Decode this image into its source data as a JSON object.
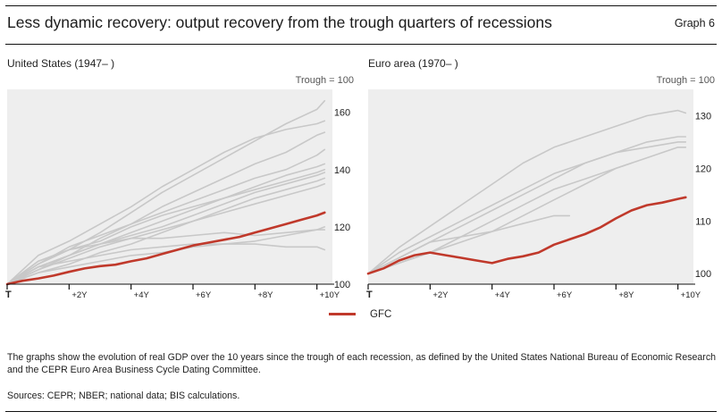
{
  "header": {
    "title": "Less dynamic recovery: output recovery from the trough quarters of recessions",
    "graph_number": "Graph 6"
  },
  "panels": [
    {
      "title": "United States (1947– )",
      "unit": "Trough = 100"
    },
    {
      "title": "Euro area (1970– )",
      "unit": "Trough = 100"
    }
  ],
  "legend": {
    "label": "GFC",
    "color": "#c0392b"
  },
  "colors": {
    "gfc": "#c0392b",
    "other_recessions": "#c8c8c8",
    "plot_background": "#eeeeee"
  },
  "footer": {
    "note": "The graphs show the evolution of real GDP over the 10 years since the trough of each recession, as defined by the United States National Bureau of Economic Research and the CEPR Euro Area Business Cycle Dating Committee.",
    "sources": "Sources: CEPR; NBER; national data; BIS calculations."
  },
  "chart_data": [
    {
      "type": "line",
      "title": "United States (1947– )",
      "subtitle": "Trough = 100",
      "x_unit": "quarters after trough",
      "x_ticks": [
        {
          "x": 0,
          "label": "T"
        },
        {
          "x": 8,
          "label": "+2Y"
        },
        {
          "x": 16,
          "label": "+4Y"
        },
        {
          "x": 24,
          "label": "+6Y"
        },
        {
          "x": 32,
          "label": "+8Y"
        },
        {
          "x": 40,
          "label": "+10Y"
        }
      ],
      "xlim": [
        0,
        42
      ],
      "ylim": [
        100,
        168
      ],
      "y_ticks": [
        100,
        120,
        140,
        160
      ],
      "y_axis_side": "right",
      "grid": false,
      "series": [
        {
          "name": "GFC",
          "highlight": true,
          "x": [
            0,
            2,
            4,
            6,
            8,
            10,
            12,
            14,
            16,
            18,
            20,
            22,
            24,
            26,
            28,
            30,
            32,
            34,
            36,
            38,
            40,
            41
          ],
          "values": [
            100,
            101.2,
            102,
            103,
            104.3,
            105.5,
            106.3,
            106.8,
            108,
            109,
            110.5,
            112,
            113.5,
            114.5,
            115.5,
            116.5,
            118,
            119.5,
            121,
            122.5,
            124,
            125
          ]
        },
        {
          "x": [
            0,
            4,
            8,
            12,
            16,
            20,
            24,
            28,
            32,
            36,
            40,
            41
          ],
          "values": [
            100,
            107,
            112,
            118,
            125,
            132,
            138,
            144,
            150,
            156,
            161,
            164
          ]
        },
        {
          "x": [
            0,
            4,
            8,
            12,
            16,
            20,
            24,
            28,
            32,
            36,
            40,
            41
          ],
          "values": [
            100,
            110,
            115,
            121,
            127,
            134,
            140,
            146,
            151,
            154,
            156,
            157
          ]
        },
        {
          "x": [
            0,
            4,
            8,
            12,
            16,
            20,
            24,
            28,
            32,
            36,
            40,
            41
          ],
          "values": [
            100,
            106,
            110,
            116,
            121,
            127,
            132,
            137,
            142,
            146,
            152,
            153
          ]
        },
        {
          "x": [
            0,
            4,
            8,
            12,
            16,
            20,
            24,
            28,
            32,
            36,
            40,
            41
          ],
          "values": [
            100,
            107,
            113,
            117,
            121,
            125,
            129,
            133,
            137,
            140,
            145,
            147
          ]
        },
        {
          "x": [
            0,
            4,
            8,
            12,
            16,
            20,
            24,
            28,
            32,
            36,
            40,
            41
          ],
          "values": [
            100,
            105,
            110,
            114,
            118,
            122,
            126,
            130,
            134,
            138,
            141,
            142
          ]
        },
        {
          "x": [
            0,
            4,
            8,
            12,
            16,
            20,
            24,
            28,
            32,
            36,
            40,
            41
          ],
          "values": [
            100,
            108,
            112,
            115,
            120,
            124,
            127,
            130,
            133,
            136,
            139,
            140
          ]
        },
        {
          "x": [
            0,
            4,
            8,
            12,
            16,
            20,
            24,
            28,
            32,
            36,
            40,
            41
          ],
          "values": [
            100,
            106,
            110,
            114,
            117,
            120,
            124,
            128,
            132,
            135,
            138,
            139
          ]
        },
        {
          "x": [
            0,
            4,
            8,
            12,
            16,
            20,
            24,
            28,
            32,
            36,
            40,
            41
          ],
          "values": [
            100,
            104,
            107,
            111,
            114,
            118,
            122,
            126,
            130,
            133,
            136,
            137
          ]
        },
        {
          "x": [
            0,
            4,
            8,
            12,
            16,
            20,
            24,
            28,
            32,
            36,
            40,
            41
          ],
          "values": [
            100,
            108,
            112,
            114,
            116,
            116,
            117,
            118,
            117,
            118,
            119,
            120
          ]
        },
        {
          "x": [
            0,
            4,
            8,
            12,
            16,
            20,
            24,
            28,
            32,
            36,
            40,
            41
          ],
          "values": [
            100,
            104,
            106,
            108,
            110,
            111,
            113,
            114,
            115,
            117,
            119,
            119
          ]
        },
        {
          "x": [
            0,
            4,
            8,
            12,
            16,
            20,
            24,
            28,
            32,
            36,
            40,
            41
          ],
          "values": [
            100,
            106,
            108,
            110,
            112,
            113,
            114,
            114,
            114,
            113,
            113,
            112
          ]
        },
        {
          "x": [
            0,
            4,
            8,
            12,
            16,
            20,
            24,
            28,
            32,
            36,
            40,
            41
          ],
          "values": [
            100,
            105,
            109,
            113,
            116,
            119,
            122,
            125,
            128,
            131,
            134,
            135
          ]
        }
      ]
    },
    {
      "type": "line",
      "title": "Euro area (1970– )",
      "subtitle": "Trough = 100",
      "x_unit": "quarters after trough",
      "x_ticks": [
        {
          "x": 0,
          "label": "T"
        },
        {
          "x": 8,
          "label": "+2Y"
        },
        {
          "x": 16,
          "label": "+4Y"
        },
        {
          "x": 24,
          "label": "+6Y"
        },
        {
          "x": 32,
          "label": "+8Y"
        },
        {
          "x": 40,
          "label": "+10Y"
        }
      ],
      "xlim": [
        0,
        42
      ],
      "ylim": [
        98,
        135
      ],
      "y_ticks": [
        100,
        110,
        120,
        130
      ],
      "y_axis_side": "right",
      "grid": false,
      "series": [
        {
          "name": "GFC",
          "highlight": true,
          "x": [
            0,
            2,
            4,
            6,
            8,
            10,
            12,
            14,
            16,
            18,
            20,
            22,
            24,
            26,
            28,
            30,
            32,
            34,
            36,
            38,
            40,
            41
          ],
          "values": [
            100,
            101,
            102.5,
            103.5,
            104,
            103.5,
            103,
            102.5,
            102,
            102.8,
            103.3,
            104,
            105.5,
            106.5,
            107.5,
            108.8,
            110.5,
            112,
            113,
            113.5,
            114.2,
            114.5
          ]
        },
        {
          "x": [
            0,
            4,
            8,
            12,
            16,
            20,
            24,
            28,
            32,
            36,
            40,
            41
          ],
          "values": [
            100,
            105,
            109,
            113,
            117,
            121,
            124,
            126,
            128,
            130,
            131,
            130.5
          ]
        },
        {
          "x": [
            0,
            4,
            8,
            12,
            16,
            20,
            24,
            28,
            32,
            36,
            40,
            41
          ],
          "values": [
            100,
            104,
            107,
            110,
            113,
            116,
            119,
            121,
            123,
            124,
            125,
            125
          ]
        },
        {
          "x": [
            0,
            4,
            8,
            12,
            16,
            20,
            24,
            28,
            32,
            36,
            40,
            41
          ],
          "values": [
            100,
            103,
            106,
            109,
            112,
            115,
            118,
            121,
            123,
            125,
            126,
            126
          ]
        },
        {
          "x": [
            0,
            4,
            8,
            12,
            16,
            20,
            24,
            28,
            32,
            36,
            40,
            41
          ],
          "values": [
            100,
            102,
            104,
            106,
            108,
            111,
            114,
            117,
            120,
            122,
            124,
            124
          ]
        },
        {
          "x": [
            0,
            4,
            8,
            12,
            16,
            20,
            24,
            26
          ],
          "values": [
            100,
            103,
            106,
            107,
            108,
            109.5,
            111,
            111
          ]
        },
        {
          "x": [
            0,
            4,
            8,
            12,
            16,
            20,
            24,
            28,
            32,
            34
          ],
          "values": [
            100,
            102,
            104,
            107,
            110,
            113,
            116,
            118,
            120,
            121
          ]
        }
      ]
    }
  ]
}
